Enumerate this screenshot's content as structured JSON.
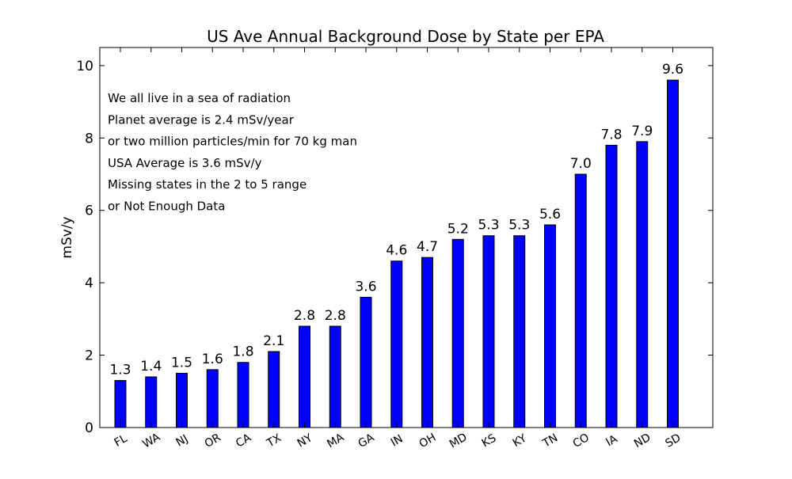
{
  "chart_data": {
    "type": "bar",
    "title": "US Ave Annual Background Dose by State per EPA",
    "xlabel": "",
    "ylabel": "mSv/y",
    "ylim": [
      0,
      10.5
    ],
    "yticks": [
      0,
      2,
      4,
      6,
      8,
      10
    ],
    "grid": false,
    "bar_color": "#0000ff",
    "categories": [
      "FL",
      "WA",
      "NJ",
      "OR",
      "CA",
      "TX",
      "NY",
      "MA",
      "GA",
      "IN",
      "OH",
      "MD",
      "KS",
      "KY",
      "TN",
      "CO",
      "IA",
      "ND",
      "SD"
    ],
    "values": [
      1.3,
      1.4,
      1.5,
      1.6,
      1.8,
      2.1,
      2.8,
      2.8,
      3.6,
      4.6,
      4.7,
      5.2,
      5.3,
      5.3,
      5.6,
      7.0,
      7.8,
      7.9,
      9.6
    ],
    "data_labels": [
      "1.3",
      "1.4",
      "1.5",
      "1.6",
      "1.8",
      "2.1",
      "2.8",
      "2.8",
      "3.6",
      "4.6",
      "4.7",
      "5.2",
      "5.3",
      "5.3",
      "5.6",
      "7.0",
      "7.8",
      "7.9",
      "9.6"
    ],
    "annotations": [
      "We all live in a sea of radiation",
      "Planet average is 2.4 mSv/year",
      "or two million particles/min for 70 kg man",
      "USA Average is 3.6 mSv/y",
      "Missing states in the 2 to 5 range",
      "or Not Enough Data"
    ]
  }
}
